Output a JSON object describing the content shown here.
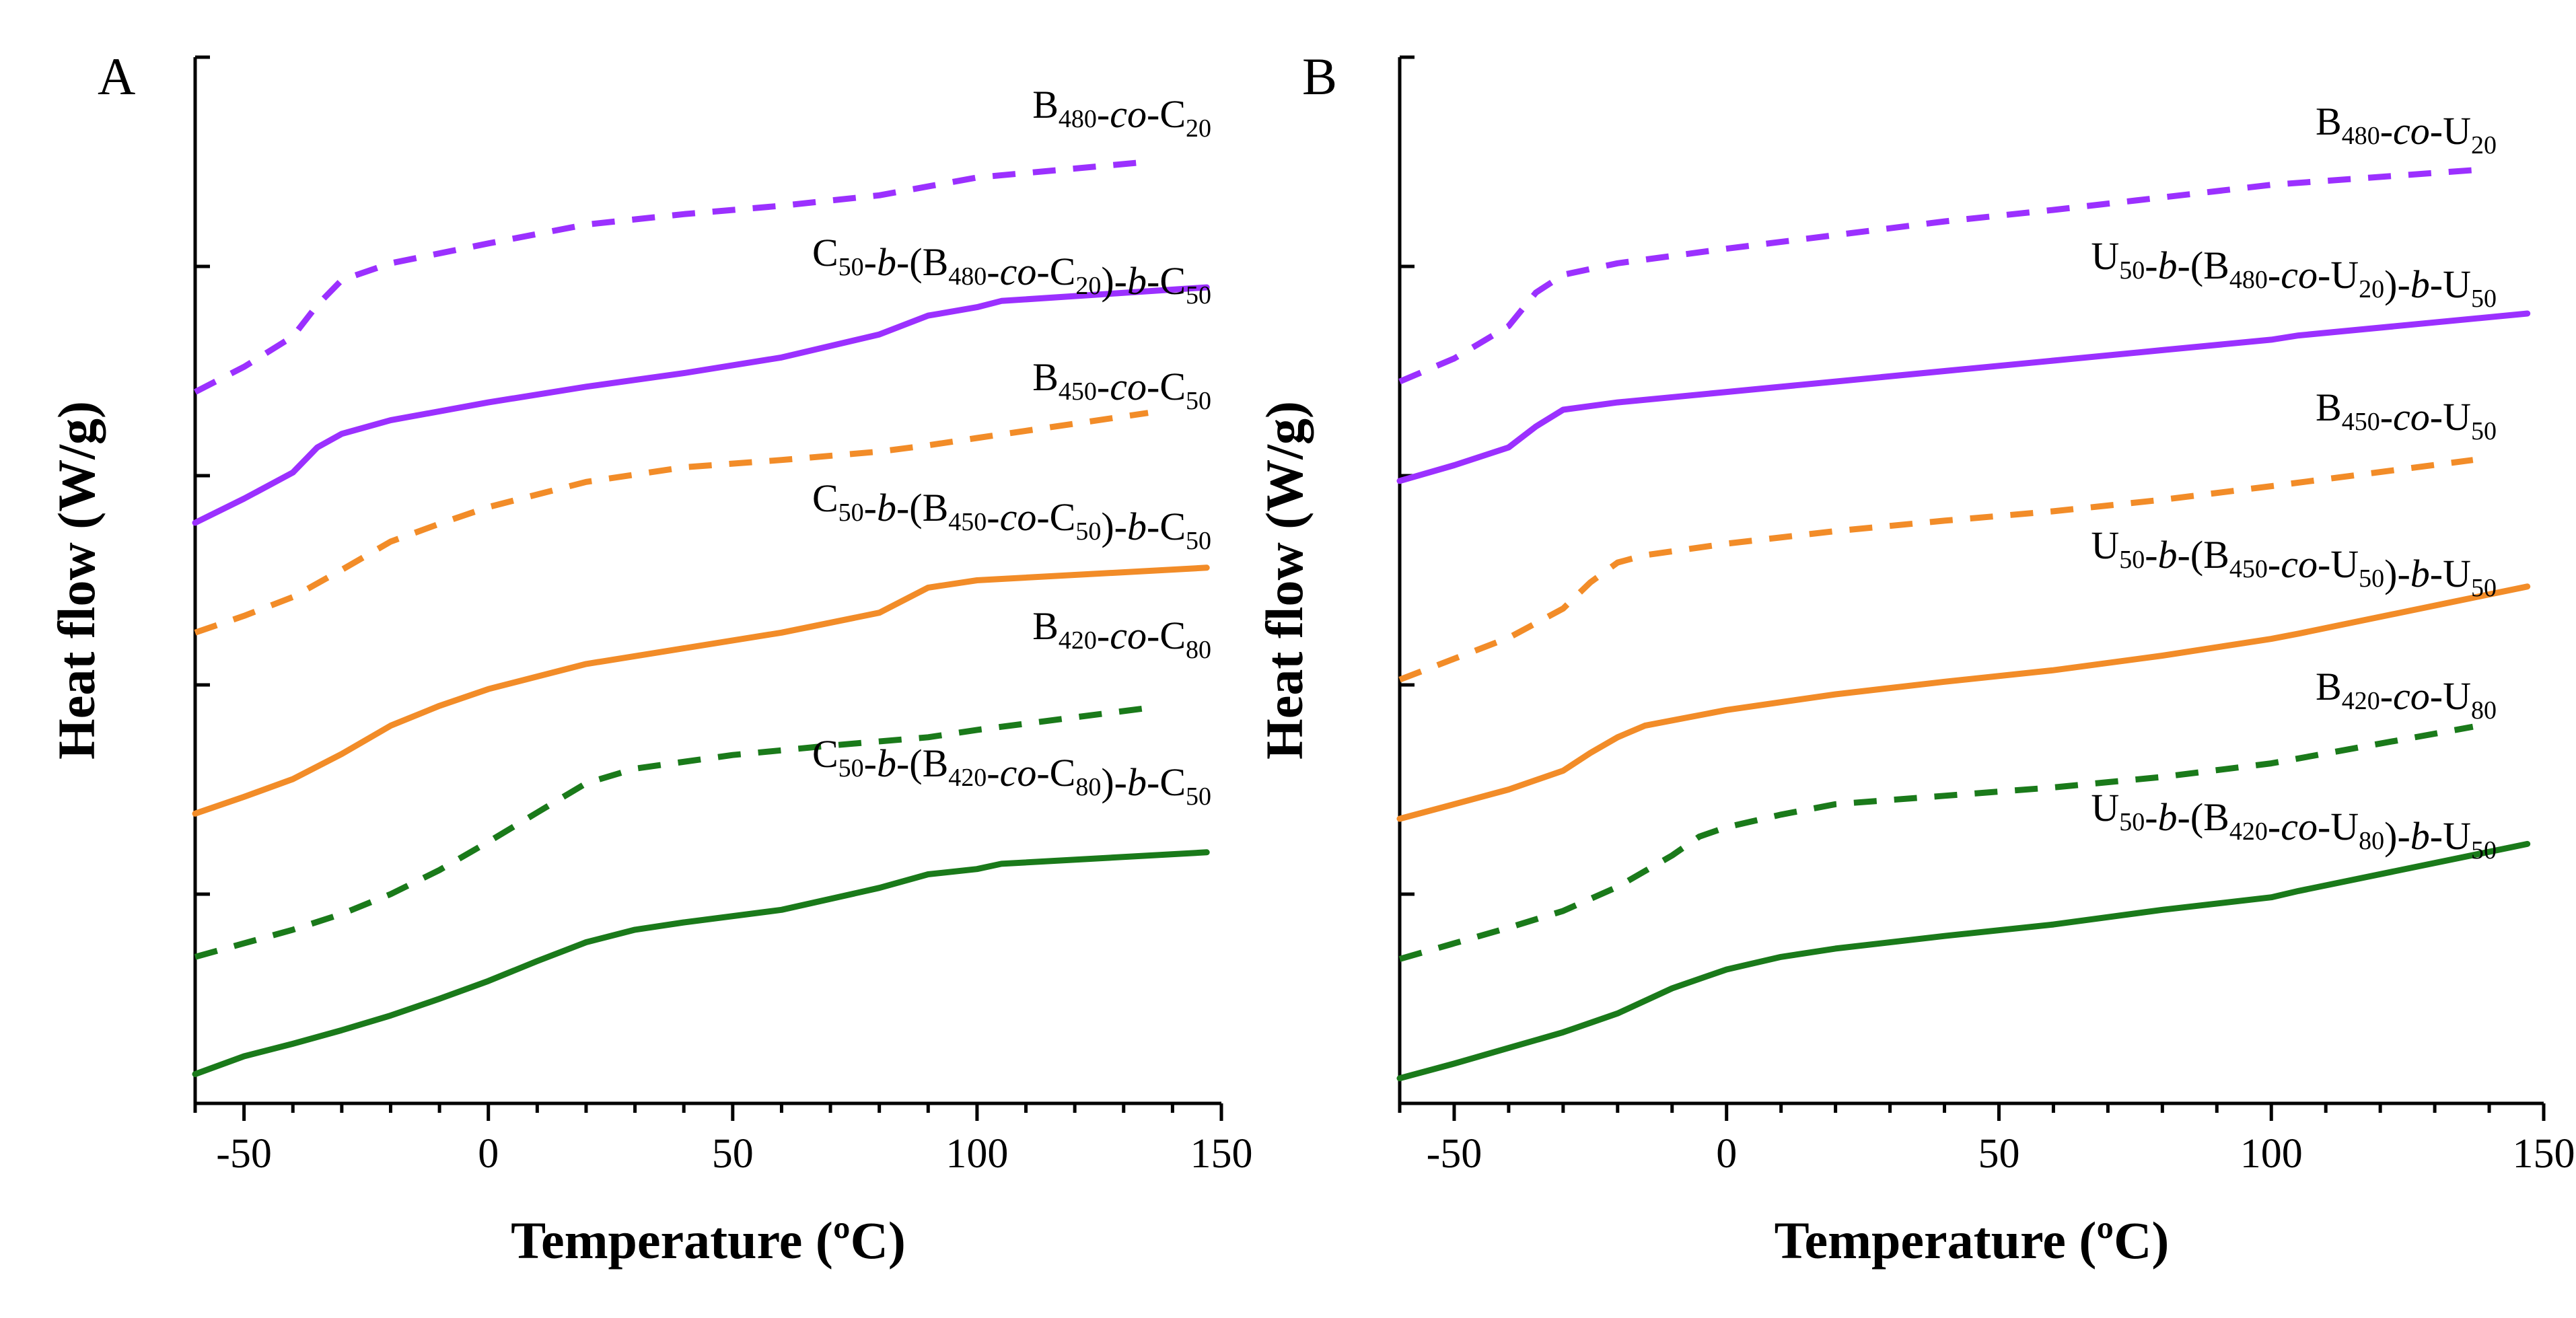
{
  "chart_data": [
    {
      "panel": "A",
      "type": "line",
      "xlabel": "Temperature (ºC)",
      "ylabel": "Heat flow (W/g)",
      "xlim": [
        -60,
        150
      ],
      "xticks": [
        -50,
        0,
        50,
        100,
        150
      ],
      "ylim": [
        0,
        100
      ],
      "y_tick_count": 5,
      "grid": false,
      "series": [
        {
          "name": "B480-co-C20",
          "label": [
            [
              "B",
              ""
            ],
            [
              "480",
              "sub"
            ],
            [
              "-",
              ""
            ],
            [
              "co",
              "it"
            ],
            [
              "-C",
              ""
            ],
            [
              "20",
              "sub"
            ]
          ],
          "color": "#9b30ff",
          "dashed": true,
          "x": [
            -60,
            -50,
            -40,
            -35,
            -30,
            -20,
            0,
            20,
            40,
            60,
            80,
            100,
            135
          ],
          "y": [
            68.0,
            70.4,
            73.3,
            76.3,
            78.7,
            80.3,
            82.2,
            84.0,
            85.0,
            85.8,
            86.8,
            88.5,
            90.0
          ]
        },
        {
          "name": "C50-b-(B480-co-C20)-b-C50",
          "label": [
            [
              "C",
              ""
            ],
            [
              "50",
              "sub"
            ],
            [
              "-",
              ""
            ],
            [
              "b",
              "it"
            ],
            [
              "-(B",
              ""
            ],
            [
              "480",
              "sub"
            ],
            [
              "-",
              ""
            ],
            [
              "co",
              "it"
            ],
            [
              "-C",
              ""
            ],
            [
              "20",
              "sub"
            ],
            [
              ")-",
              ""
            ],
            [
              "b",
              "it"
            ],
            [
              "-C",
              ""
            ],
            [
              "50",
              "sub"
            ]
          ],
          "color": "#9b30ff",
          "dashed": false,
          "x": [
            -60,
            -50,
            -40,
            -35,
            -30,
            -20,
            0,
            20,
            40,
            60,
            80,
            90,
            100,
            105,
            147
          ],
          "y": [
            55.5,
            57.8,
            60.3,
            62.7,
            64.0,
            65.3,
            67.0,
            68.5,
            69.8,
            71.3,
            73.5,
            75.3,
            76.1,
            76.7,
            78.0
          ]
        },
        {
          "name": "B450-co-C50",
          "label": [
            [
              "B",
              ""
            ],
            [
              "450",
              "sub"
            ],
            [
              "-",
              ""
            ],
            [
              "co",
              "it"
            ],
            [
              "-C",
              ""
            ],
            [
              "50",
              "sub"
            ]
          ],
          "color": "#f28c28",
          "dashed": true,
          "x": [
            -60,
            -50,
            -40,
            -30,
            -20,
            -10,
            0,
            20,
            40,
            60,
            80,
            90,
            100,
            135
          ],
          "y": [
            45.0,
            46.6,
            48.4,
            51.0,
            53.7,
            55.4,
            57.0,
            59.4,
            60.8,
            61.5,
            62.3,
            62.9,
            63.6,
            66.0
          ]
        },
        {
          "name": "C50-b-(B450-co-C50)-b-C50",
          "label": [
            [
              "C",
              ""
            ],
            [
              "50",
              "sub"
            ],
            [
              "-",
              ""
            ],
            [
              "b",
              "it"
            ],
            [
              "-(B",
              ""
            ],
            [
              "450",
              "sub"
            ],
            [
              "-",
              ""
            ],
            [
              "co",
              "it"
            ],
            [
              "-C",
              ""
            ],
            [
              "50",
              "sub"
            ],
            [
              ")-",
              ""
            ],
            [
              "b",
              "it"
            ],
            [
              "-C",
              ""
            ],
            [
              "50",
              "sub"
            ]
          ],
          "color": "#f28c28",
          "dashed": false,
          "x": [
            -60,
            -50,
            -40,
            -30,
            -20,
            -10,
            0,
            20,
            40,
            60,
            80,
            90,
            100,
            147
          ],
          "y": [
            27.7,
            29.3,
            31.0,
            33.4,
            36.1,
            38.0,
            39.6,
            42.0,
            43.5,
            45.0,
            46.9,
            49.3,
            50.0,
            51.2
          ]
        },
        {
          "name": "B420-co-C80",
          "label": [
            [
              "B",
              ""
            ],
            [
              "420",
              "sub"
            ],
            [
              "-",
              ""
            ],
            [
              "co",
              "it"
            ],
            [
              "-C",
              ""
            ],
            [
              "80",
              "sub"
            ]
          ],
          "color": "#1a7a1a",
          "dashed": true,
          "x": [
            -60,
            -50,
            -40,
            -30,
            -20,
            -10,
            0,
            10,
            20,
            30,
            50,
            70,
            90,
            100,
            135
          ],
          "y": [
            14.0,
            15.3,
            16.6,
            18.1,
            20.0,
            22.3,
            25.0,
            27.8,
            30.6,
            32.0,
            33.3,
            34.2,
            35.0,
            35.7,
            37.8
          ]
        },
        {
          "name": "C50-b-(B420-co-C80)-b-C50",
          "label": [
            [
              "C",
              ""
            ],
            [
              "50",
              "sub"
            ],
            [
              "-",
              ""
            ],
            [
              "b",
              "it"
            ],
            [
              "-(B",
              ""
            ],
            [
              "420",
              "sub"
            ],
            [
              "-",
              ""
            ],
            [
              "co",
              "it"
            ],
            [
              "-C",
              ""
            ],
            [
              "80",
              "sub"
            ],
            [
              ")-",
              ""
            ],
            [
              "b",
              "it"
            ],
            [
              "-C",
              ""
            ],
            [
              "50",
              "sub"
            ]
          ],
          "color": "#1a7a1a",
          "dashed": false,
          "x": [
            -60,
            -50,
            -40,
            -30,
            -20,
            -10,
            0,
            10,
            20,
            30,
            40,
            60,
            80,
            90,
            100,
            105,
            147
          ],
          "y": [
            2.8,
            4.5,
            5.7,
            7.0,
            8.4,
            10.0,
            11.7,
            13.6,
            15.4,
            16.6,
            17.3,
            18.5,
            20.6,
            21.9,
            22.4,
            22.9,
            24.0
          ]
        }
      ]
    },
    {
      "panel": "B",
      "type": "line",
      "xlabel": "Temperature (ºC)",
      "ylabel": "Heat flow (W/g)",
      "xlim": [
        -60,
        150
      ],
      "xticks": [
        -50,
        0,
        50,
        100,
        150
      ],
      "ylim": [
        0,
        100
      ],
      "y_tick_count": 5,
      "grid": false,
      "series": [
        {
          "name": "B480-co-U20",
          "label": [
            [
              "B",
              ""
            ],
            [
              "480",
              "sub"
            ],
            [
              "-",
              ""
            ],
            [
              "co",
              "it"
            ],
            [
              "-U",
              ""
            ],
            [
              "20",
              "sub"
            ]
          ],
          "color": "#9b30ff",
          "dashed": true,
          "x": [
            -60,
            -50,
            -40,
            -35,
            -30,
            -20,
            0,
            20,
            40,
            60,
            80,
            100,
            137
          ],
          "y": [
            69.0,
            71.2,
            74.3,
            77.5,
            79.2,
            80.3,
            81.7,
            83.0,
            84.3,
            85.4,
            86.6,
            87.8,
            89.2
          ]
        },
        {
          "name": "U50-b-(B480-co-U20)-b-U50",
          "label": [
            [
              "U",
              ""
            ],
            [
              "50",
              "sub"
            ],
            [
              "-",
              ""
            ],
            [
              "b",
              "it"
            ],
            [
              "-(B",
              ""
            ],
            [
              "480",
              "sub"
            ],
            [
              "-",
              ""
            ],
            [
              "co",
              "it"
            ],
            [
              "-U",
              ""
            ],
            [
              "20",
              "sub"
            ],
            [
              ")-",
              ""
            ],
            [
              "b",
              "it"
            ],
            [
              "-U",
              ""
            ],
            [
              "50",
              "sub"
            ]
          ],
          "color": "#9b30ff",
          "dashed": false,
          "x": [
            -60,
            -50,
            -40,
            -35,
            -30,
            -20,
            0,
            20,
            40,
            60,
            80,
            100,
            105,
            147
          ],
          "y": [
            59.5,
            61.0,
            62.7,
            64.7,
            66.3,
            67.0,
            68.0,
            69.0,
            70.0,
            71.0,
            72.0,
            73.0,
            73.4,
            75.5
          ]
        },
        {
          "name": "B450-co-U50",
          "label": [
            [
              "B",
              ""
            ],
            [
              "450",
              "sub"
            ],
            [
              "-",
              ""
            ],
            [
              "co",
              "it"
            ],
            [
              "-U",
              ""
            ],
            [
              "50",
              "sub"
            ]
          ],
          "color": "#f28c28",
          "dashed": true,
          "x": [
            -60,
            -50,
            -40,
            -30,
            -25,
            -20,
            -15,
            0,
            20,
            40,
            60,
            80,
            100,
            137
          ],
          "y": [
            40.5,
            42.5,
            44.5,
            47.3,
            49.8,
            51.7,
            52.4,
            53.5,
            54.7,
            55.7,
            56.6,
            57.7,
            59.0,
            61.5
          ]
        },
        {
          "name": "U50-b-(B450-co-U50)-b-U50",
          "label": [
            [
              "U",
              ""
            ],
            [
              "50",
              "sub"
            ],
            [
              "-",
              ""
            ],
            [
              "b",
              "it"
            ],
            [
              "-(B",
              ""
            ],
            [
              "450",
              "sub"
            ],
            [
              "-",
              ""
            ],
            [
              "co",
              "it"
            ],
            [
              "-U",
              ""
            ],
            [
              "50",
              "sub"
            ],
            [
              ")-",
              ""
            ],
            [
              "b",
              "it"
            ],
            [
              "-U",
              ""
            ],
            [
              "50",
              "sub"
            ]
          ],
          "color": "#f28c28",
          "dashed": false,
          "x": [
            -60,
            -50,
            -40,
            -30,
            -25,
            -20,
            -15,
            0,
            20,
            40,
            60,
            80,
            100,
            105,
            147
          ],
          "y": [
            27.2,
            28.6,
            30.0,
            31.8,
            33.5,
            35.0,
            36.1,
            37.6,
            39.1,
            40.3,
            41.4,
            42.8,
            44.4,
            44.9,
            49.4
          ]
        },
        {
          "name": "B420-co-U80",
          "label": [
            [
              "B",
              ""
            ],
            [
              "420",
              "sub"
            ],
            [
              "-",
              ""
            ],
            [
              "co",
              "it"
            ],
            [
              "-U",
              ""
            ],
            [
              "80",
              "sub"
            ]
          ],
          "color": "#1a7a1a",
          "dashed": true,
          "x": [
            -60,
            -50,
            -40,
            -30,
            -20,
            -10,
            -5,
            0,
            10,
            20,
            40,
            60,
            80,
            100,
            137
          ],
          "y": [
            13.8,
            15.3,
            16.8,
            18.4,
            20.7,
            23.7,
            25.5,
            26.4,
            27.6,
            28.6,
            29.4,
            30.2,
            31.2,
            32.5,
            36.0
          ]
        },
        {
          "name": "U50-b-(B420-co-U80)-b-U50",
          "label": [
            [
              "U",
              ""
            ],
            [
              "50",
              "sub"
            ],
            [
              "-",
              ""
            ],
            [
              "b",
              "it"
            ],
            [
              "-(B",
              ""
            ],
            [
              "420",
              "sub"
            ],
            [
              "-",
              ""
            ],
            [
              "co",
              "it"
            ],
            [
              "-U",
              ""
            ],
            [
              "80",
              "sub"
            ],
            [
              ")-",
              ""
            ],
            [
              "b",
              "it"
            ],
            [
              "-U",
              ""
            ],
            [
              "50",
              "sub"
            ]
          ],
          "color": "#1a7a1a",
          "dashed": false,
          "x": [
            -60,
            -50,
            -40,
            -30,
            -20,
            -10,
            0,
            10,
            20,
            40,
            60,
            80,
            100,
            105,
            147
          ],
          "y": [
            2.4,
            3.8,
            5.3,
            6.8,
            8.6,
            11.0,
            12.8,
            14.0,
            14.8,
            16.0,
            17.1,
            18.5,
            19.7,
            20.3,
            24.8
          ]
        }
      ]
    }
  ]
}
